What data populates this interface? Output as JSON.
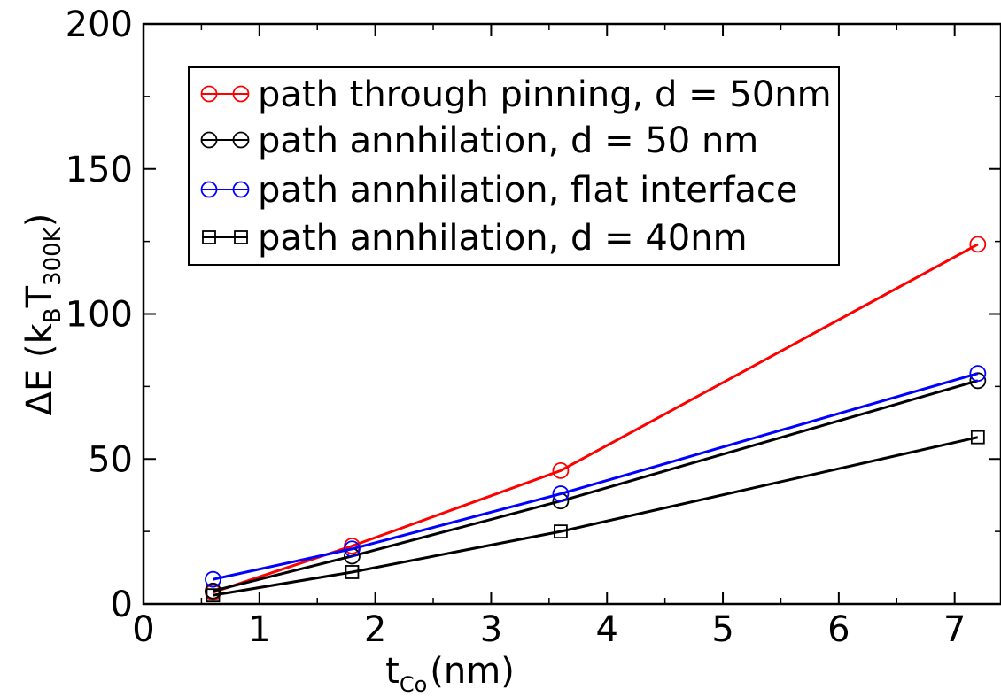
{
  "chart_data": {
    "type": "line",
    "xlabel_main": "t",
    "xlabel_sub": "Co",
    "xlabel_unit": "(nm)",
    "ylabel": "ΔE (k",
    "ylabel_sub_b": "B",
    "ylabel_T": "T",
    "ylabel_sub_t": "300K",
    "ylabel_close": ")",
    "xlim": [
      0,
      7.4
    ],
    "ylim": [
      0,
      200
    ],
    "x_ticks": [
      0,
      1,
      2,
      3,
      4,
      5,
      6,
      7
    ],
    "x_tick_labels": [
      "0",
      "1",
      "2",
      "3",
      "4",
      "5",
      "6",
      "7"
    ],
    "y_ticks": [
      0,
      50,
      100,
      150,
      200
    ],
    "y_tick_labels": [
      "0",
      "50",
      "100",
      "150",
      "200"
    ],
    "grid": false,
    "legend_position": "top-left",
    "series": [
      {
        "name": "path through pinning, d = 50nm",
        "color": "#ff0000",
        "marker": "circle",
        "x": [
          0.6,
          1.8,
          3.6,
          7.2
        ],
        "y": [
          4,
          20,
          46,
          124
        ]
      },
      {
        "name": "path annhilation, d = 50 nm",
        "color": "#000000",
        "marker": "circle",
        "x": [
          0.6,
          1.8,
          3.6,
          7.2
        ],
        "y": [
          4.5,
          16.5,
          35.5,
          77
        ]
      },
      {
        "name": "path annhilation, flat interface",
        "color": "#0000ff",
        "marker": "circle",
        "x": [
          0.6,
          1.8,
          3.6,
          7.2
        ],
        "y": [
          8.5,
          19,
          38,
          79.5
        ]
      },
      {
        "name": "path annhilation, d  =  40nm",
        "color": "#000000",
        "marker": "square",
        "x": [
          0.6,
          1.8,
          3.6,
          7.2
        ],
        "y": [
          3,
          11,
          25,
          57.5
        ]
      }
    ]
  }
}
